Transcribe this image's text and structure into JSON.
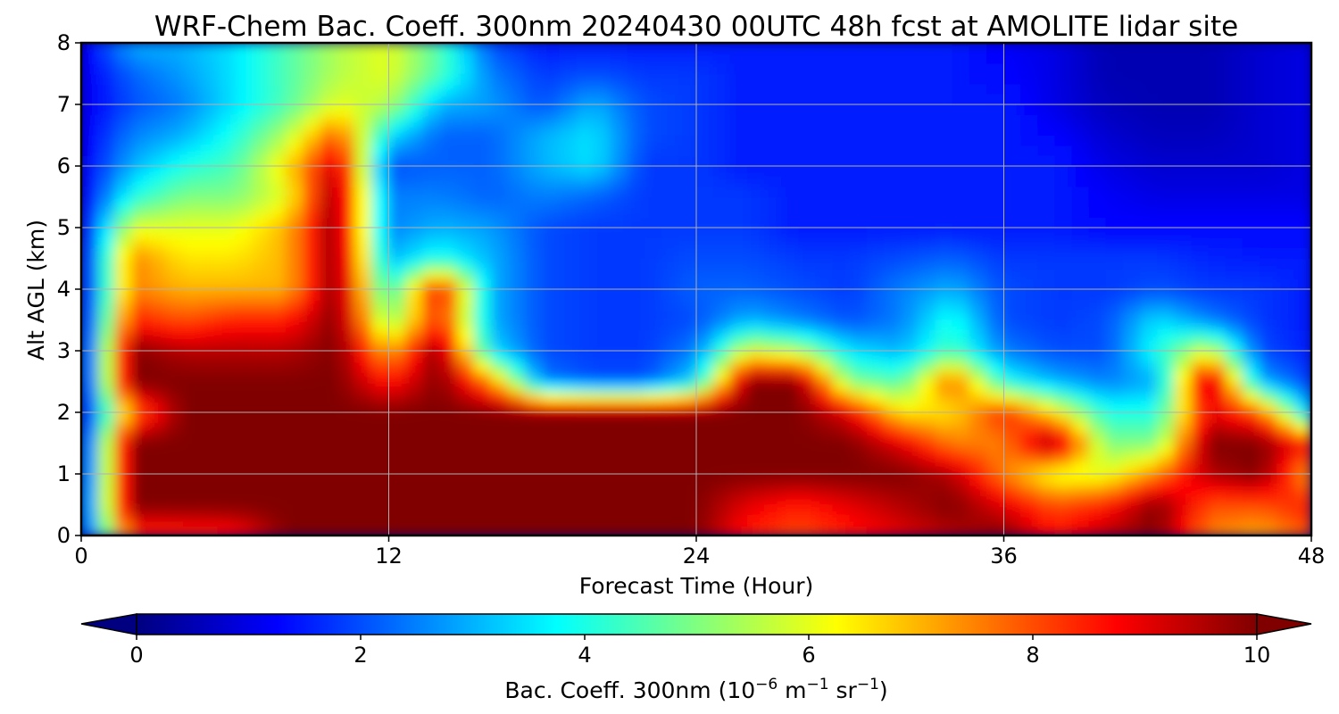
{
  "chart_data": {
    "type": "heatmap",
    "title": "WRF-Chem Bac. Coeff. 300nm  20240430 00UTC 48h fcst at AMOLITE lidar site",
    "xlabel": "Forecast Time (Hour)",
    "ylabel": "Alt AGL (km)",
    "xlim": [
      0,
      48
    ],
    "ylim": [
      0,
      8
    ],
    "x_ticks": [
      "0",
      "12",
      "24",
      "36",
      "48"
    ],
    "y_ticks": [
      "0",
      "1",
      "2",
      "3",
      "4",
      "5",
      "6",
      "7",
      "8"
    ],
    "grid": true,
    "colormap": "jet",
    "colorbar": {
      "orientation": "horizontal",
      "placement": "bottom",
      "label_main": "Bac. Coeff. 300nm  (10",
      "label_exp1": "−6",
      "label_mid": " m",
      "label_exp2": "−1",
      "label_mid2": " sr",
      "label_exp3": "−1",
      "label_end": ")",
      "range": [
        0,
        10
      ],
      "ticks": [
        "0",
        "2",
        "4",
        "6",
        "8",
        "10"
      ],
      "extend": "both"
    },
    "x": [
      0,
      2,
      4,
      6,
      8,
      10,
      12,
      14,
      16,
      18,
      20,
      22,
      24,
      26,
      28,
      30,
      32,
      34,
      36,
      38,
      40,
      42,
      44,
      46,
      48
    ],
    "y": [
      0,
      0.5,
      1,
      1.5,
      2,
      2.5,
      3,
      3.5,
      4,
      4.5,
      5,
      5.5,
      6,
      6.5,
      7,
      7.5,
      8
    ],
    "z": [
      [
        1.5,
        8.2,
        8.3,
        8.5,
        10,
        10,
        10,
        10,
        10,
        10,
        10,
        10,
        10,
        8.5,
        8.0,
        8.5,
        9.0,
        9.5,
        10,
        8.6,
        9.5,
        10,
        7.5,
        7.0,
        8.0
      ],
      [
        1.5,
        10,
        10,
        10,
        10,
        10,
        10,
        10,
        10,
        10,
        10,
        10,
        10,
        9.0,
        8.5,
        9.0,
        9.5,
        10,
        9.0,
        8.0,
        8.5,
        10,
        8.0,
        8.0,
        8.5
      ],
      [
        1.3,
        10,
        10,
        10,
        10,
        10,
        10,
        10,
        10,
        10,
        10,
        10,
        10,
        10,
        10,
        10,
        10,
        9.5,
        7.5,
        6.0,
        6.0,
        7.5,
        9.5,
        10,
        7.0
      ],
      [
        1.2,
        10,
        10,
        10,
        10,
        10,
        10,
        10,
        10,
        10,
        10,
        10,
        10,
        10,
        10,
        10,
        9.0,
        7.5,
        7.5,
        10,
        5.0,
        5.0,
        10,
        10,
        8.5
      ],
      [
        1.0,
        7.5,
        10,
        10,
        10,
        10,
        10,
        10,
        10,
        10,
        10,
        10,
        10,
        10,
        10,
        9.0,
        6.5,
        6.5,
        8.5,
        6.5,
        4.0,
        4.0,
        9.0,
        8.0,
        3.0
      ],
      [
        1.0,
        10,
        10,
        10,
        10,
        10,
        8.5,
        10,
        7.5,
        2.5,
        2.0,
        2.0,
        3.5,
        10,
        10,
        5.0,
        4.5,
        8.0,
        4.0,
        3.0,
        2.5,
        3.0,
        10,
        3.0,
        1.8
      ],
      [
        1.0,
        10,
        9.5,
        9.5,
        9.5,
        10,
        7.0,
        10,
        3.5,
        2.0,
        1.8,
        1.8,
        2.5,
        6.0,
        5.5,
        3.5,
        3.0,
        4.5,
        2.5,
        2.0,
        2.0,
        4.0,
        6.0,
        2.0,
        1.5
      ],
      [
        1.0,
        8.5,
        8.0,
        8.5,
        8.5,
        10,
        5.0,
        8.5,
        3.0,
        2.0,
        1.8,
        1.8,
        2.0,
        3.0,
        2.5,
        2.0,
        2.5,
        4.0,
        2.0,
        1.8,
        2.0,
        3.5,
        2.5,
        1.8,
        1.5
      ],
      [
        1.0,
        7.5,
        7.0,
        7.0,
        7.0,
        10,
        4.0,
        9.0,
        3.0,
        2.0,
        1.8,
        1.8,
        2.2,
        2.2,
        2.0,
        1.8,
        2.5,
        3.0,
        2.0,
        1.8,
        1.8,
        2.0,
        1.8,
        1.8,
        1.5
      ],
      [
        1.0,
        7.5,
        6.5,
        6.5,
        7.0,
        10,
        3.0,
        4.0,
        3.0,
        2.0,
        1.8,
        1.8,
        2.0,
        2.0,
        1.8,
        1.8,
        2.0,
        2.2,
        1.8,
        1.8,
        1.8,
        1.8,
        1.6,
        1.5,
        1.5
      ],
      [
        1.0,
        6.0,
        6.0,
        6.0,
        7.0,
        10,
        2.5,
        3.0,
        2.8,
        2.0,
        1.8,
        1.8,
        1.8,
        1.8,
        1.5,
        1.5,
        1.5,
        1.5,
        1.5,
        1.5,
        1.3,
        1.3,
        1.3,
        1.3,
        1.3
      ],
      [
        1.0,
        4.0,
        5.0,
        5.0,
        6.0,
        10,
        2.5,
        2.5,
        2.2,
        2.5,
        2.2,
        1.8,
        1.8,
        1.8,
        1.5,
        1.5,
        1.5,
        1.5,
        1.5,
        1.5,
        1.2,
        1.0,
        1.0,
        1.0,
        1.0
      ],
      [
        1.0,
        3.0,
        4.0,
        4.5,
        6.5,
        9.5,
        2.0,
        2.2,
        2.2,
        3.0,
        3.5,
        1.8,
        1.8,
        1.5,
        1.5,
        1.5,
        1.5,
        1.5,
        1.5,
        1.5,
        1.0,
        0.8,
        0.8,
        0.8,
        1.0
      ],
      [
        1.0,
        2.5,
        3.0,
        4.0,
        5.5,
        8.0,
        3.5,
        2.2,
        2.2,
        3.0,
        3.5,
        2.0,
        1.8,
        1.5,
        1.5,
        1.5,
        1.5,
        1.5,
        1.5,
        1.3,
        0.8,
        0.6,
        0.6,
        0.8,
        1.0
      ],
      [
        1.0,
        2.0,
        2.5,
        3.5,
        4.5,
        6.0,
        5.5,
        3.0,
        2.8,
        2.0,
        3.0,
        2.0,
        1.8,
        1.5,
        1.5,
        1.5,
        1.5,
        1.5,
        1.5,
        1.0,
        0.6,
        0.5,
        0.5,
        0.8,
        1.0
      ],
      [
        1.0,
        2.2,
        2.8,
        3.5,
        4.5,
        5.5,
        6.0,
        4.5,
        2.5,
        1.8,
        2.0,
        1.8,
        1.8,
        1.5,
        1.5,
        1.5,
        1.5,
        1.5,
        1.3,
        1.0,
        0.5,
        0.5,
        0.5,
        0.8,
        1.0
      ],
      [
        1.0,
        3.0,
        3.0,
        3.5,
        4.5,
        5.5,
        6.0,
        4.5,
        2.0,
        1.5,
        1.5,
        1.5,
        1.5,
        1.5,
        1.5,
        1.5,
        1.5,
        1.5,
        1.2,
        1.0,
        0.5,
        0.5,
        0.5,
        0.8,
        1.0
      ]
    ]
  }
}
